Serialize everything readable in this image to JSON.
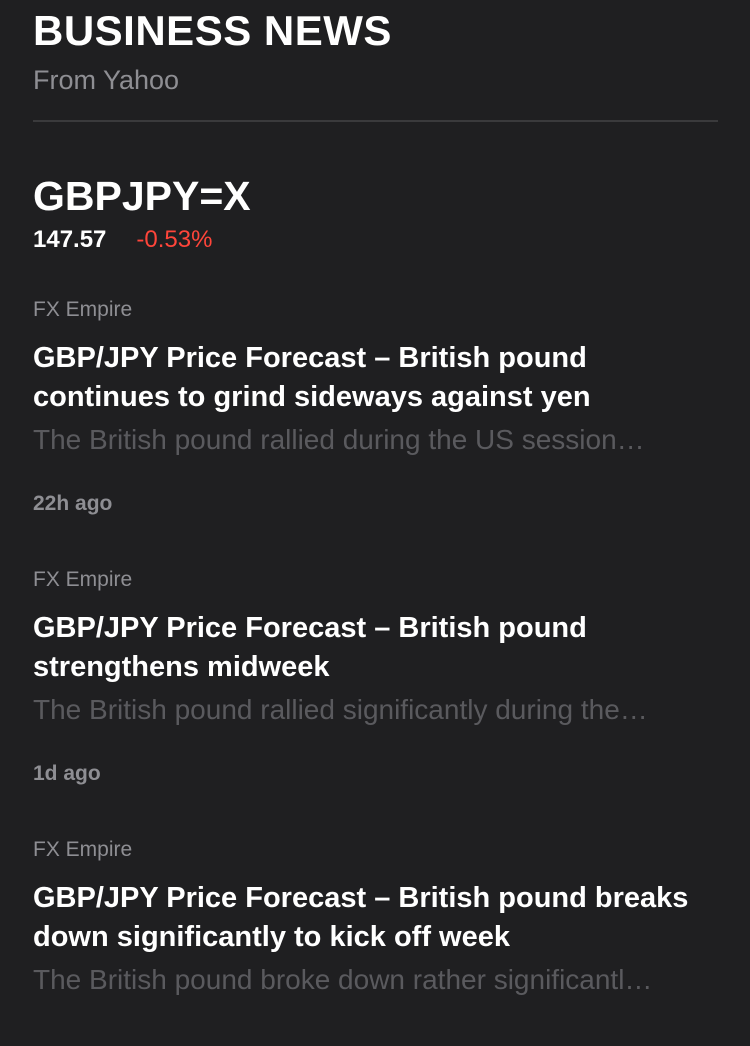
{
  "header": {
    "title": "BUSINESS NEWS",
    "subtitle": "From Yahoo"
  },
  "ticker": {
    "symbol": "GBPJPY=X",
    "price": "147.57",
    "change": "-0.53%",
    "change_color": "#ff453a"
  },
  "articles": [
    {
      "source": "FX Empire",
      "headline": "GBP/JPY Price Forecast – British pound continues to grind sideways against yen",
      "summary": "The British pound rallied during the US session…",
      "time": "22h ago"
    },
    {
      "source": "FX Empire",
      "headline": "GBP/JPY Price Forecast – British pound strengthens midweek",
      "summary": "The British pound rallied significantly during the…",
      "time": "1d ago"
    },
    {
      "source": "FX Empire",
      "headline": "GBP/JPY Price Forecast – British pound breaks down significantly to kick off week",
      "summary": "The British pound broke down rather significantl…"
    }
  ]
}
